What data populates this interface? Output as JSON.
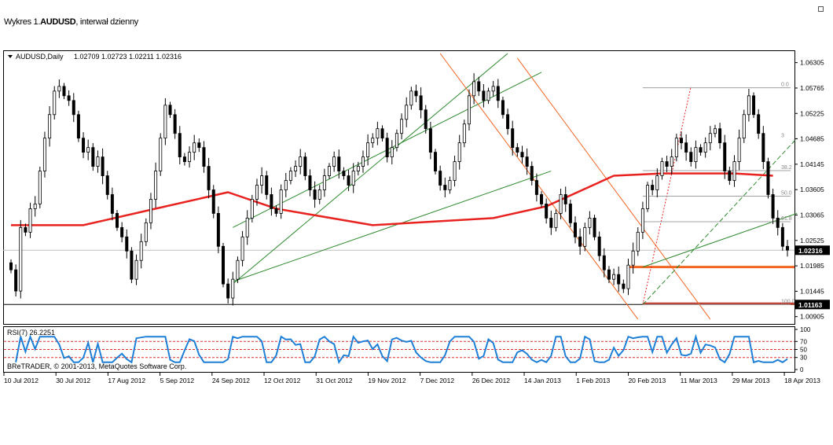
{
  "caption": {
    "prefix": "Wykres 1.",
    "symbol": "AUDUSD",
    "suffix": ", interwał dzienny"
  },
  "header": {
    "symbol_period": "AUDUSD,Daily",
    "ohlc": "1.02709 1.02723 1.02211 1.02316"
  },
  "rsi_label": "RSI(7) 26.2251",
  "copyright": "BReTRADER, © 2001-2013, MetaQuotes Software Corp.",
  "colors": {
    "candle": "#000000",
    "ma": "#e8231f",
    "channel": "#2e8b2e",
    "down_channel": "#f26522",
    "rsi": "#1e7fd6",
    "rsi_levels": "#d9302c",
    "fib": "#a0a0a0",
    "support": "#f26522"
  },
  "chart_data": {
    "type": "candlestick",
    "symbol": "AUDUSD",
    "period": "Daily",
    "last_close": 1.02316,
    "ylim": [
      1.0075,
      1.0655
    ],
    "price_ticks": [
      "1.06305",
      "1.05765",
      "1.05225",
      "1.04685",
      "1.04145",
      "1.03605",
      "1.03065",
      "1.02525",
      "1.01985",
      "1.01445",
      "1.00905"
    ],
    "price_labels": [
      {
        "text": "1.02316",
        "value": 1.02316,
        "style": "current"
      },
      {
        "text": "1.01163",
        "value": 1.01163,
        "style": "marked"
      }
    ],
    "x_tick_labels": [
      "10 Jul 2012",
      "30 Jul 2012",
      "17 Aug 2012",
      "5 Sep 2012",
      "24 Sep 2012",
      "12 Oct 2012",
      "31 Oct 2012",
      "19 Nov 2012",
      "7 Dec 2012",
      "26 Dec 2012",
      "14 Jan 2013",
      "1 Feb 2013",
      "20 Feb 2013",
      "11 Mar 2013",
      "29 Mar 2013",
      "18 Apr 2013"
    ],
    "closes": [
      1.019,
      1.0145,
      1.028,
      1.027,
      1.032,
      1.033,
      1.04,
      1.047,
      1.052,
      1.057,
      1.058,
      1.056,
      1.055,
      1.052,
      1.047,
      1.044,
      1.045,
      1.041,
      1.043,
      1.039,
      1.035,
      1.031,
      1.028,
      1.026,
      1.023,
      1.017,
      1.021,
      1.025,
      1.029,
      1.034,
      1.04,
      1.047,
      1.054,
      1.052,
      1.048,
      1.043,
      1.042,
      1.044,
      1.046,
      1.045,
      1.041,
      1.036,
      1.031,
      1.024,
      1.016,
      1.013,
      1.017,
      1.021,
      1.026,
      1.03,
      1.034,
      1.037,
      1.039,
      1.035,
      1.032,
      1.031,
      1.036,
      1.038,
      1.04,
      1.041,
      1.043,
      1.039,
      1.036,
      1.034,
      1.036,
      1.039,
      1.041,
      1.043,
      1.04,
      1.039,
      1.037,
      1.04,
      1.041,
      1.043,
      1.046,
      1.047,
      1.049,
      1.047,
      1.043,
      1.045,
      1.048,
      1.051,
      1.054,
      1.057,
      1.056,
      1.053,
      1.049,
      1.044,
      1.04,
      1.037,
      1.036,
      1.038,
      1.042,
      1.046,
      1.05,
      1.056,
      1.059,
      1.057,
      1.055,
      1.057,
      1.058,
      1.055,
      1.052,
      1.049,
      1.045,
      1.044,
      1.043,
      1.041,
      1.038,
      1.035,
      1.033,
      1.03,
      1.028,
      1.031,
      1.035,
      1.033,
      1.029,
      1.026,
      1.024,
      1.028,
      1.03,
      1.026,
      1.022,
      1.019,
      1.017,
      1.018,
      1.016,
      1.015,
      1.02,
      1.023,
      1.027,
      1.032,
      1.037,
      1.036,
      1.039,
      1.042,
      1.041,
      1.043,
      1.047,
      1.046,
      1.044,
      1.042,
      1.045,
      1.044,
      1.046,
      1.048,
      1.049,
      1.046,
      1.04,
      1.038,
      1.042,
      1.047,
      1.052,
      1.056,
      1.052,
      1.048,
      1.042,
      1.035,
      1.03,
      1.028,
      1.024,
      1.0232
    ],
    "moving_average": {
      "x_ticks_index": [
        0,
        15,
        30,
        45,
        55,
        75,
        100,
        111,
        125,
        135,
        150,
        158
      ],
      "values": [
        1.0285,
        1.0285,
        1.032,
        1.0355,
        1.032,
        1.0285,
        1.03,
        1.0325,
        1.039,
        1.0395,
        1.0395,
        1.039
      ]
    },
    "rsi": {
      "name": "RSI(7)",
      "last": 26.2251,
      "levels": [
        70,
        50,
        30
      ],
      "ticks": [
        "100",
        "70",
        "50",
        "30",
        "0"
      ],
      "ylim": [
        0,
        100
      ]
    },
    "fibonacci": {
      "levels": [
        "0.0",
        "38.2",
        "50.0",
        "61.8",
        "100.0"
      ],
      "partial_labels": [
        "3"
      ],
      "high": 1.0577,
      "low": 1.01163
    },
    "support_lines": [
      1.0196,
      1.01163
    ]
  }
}
